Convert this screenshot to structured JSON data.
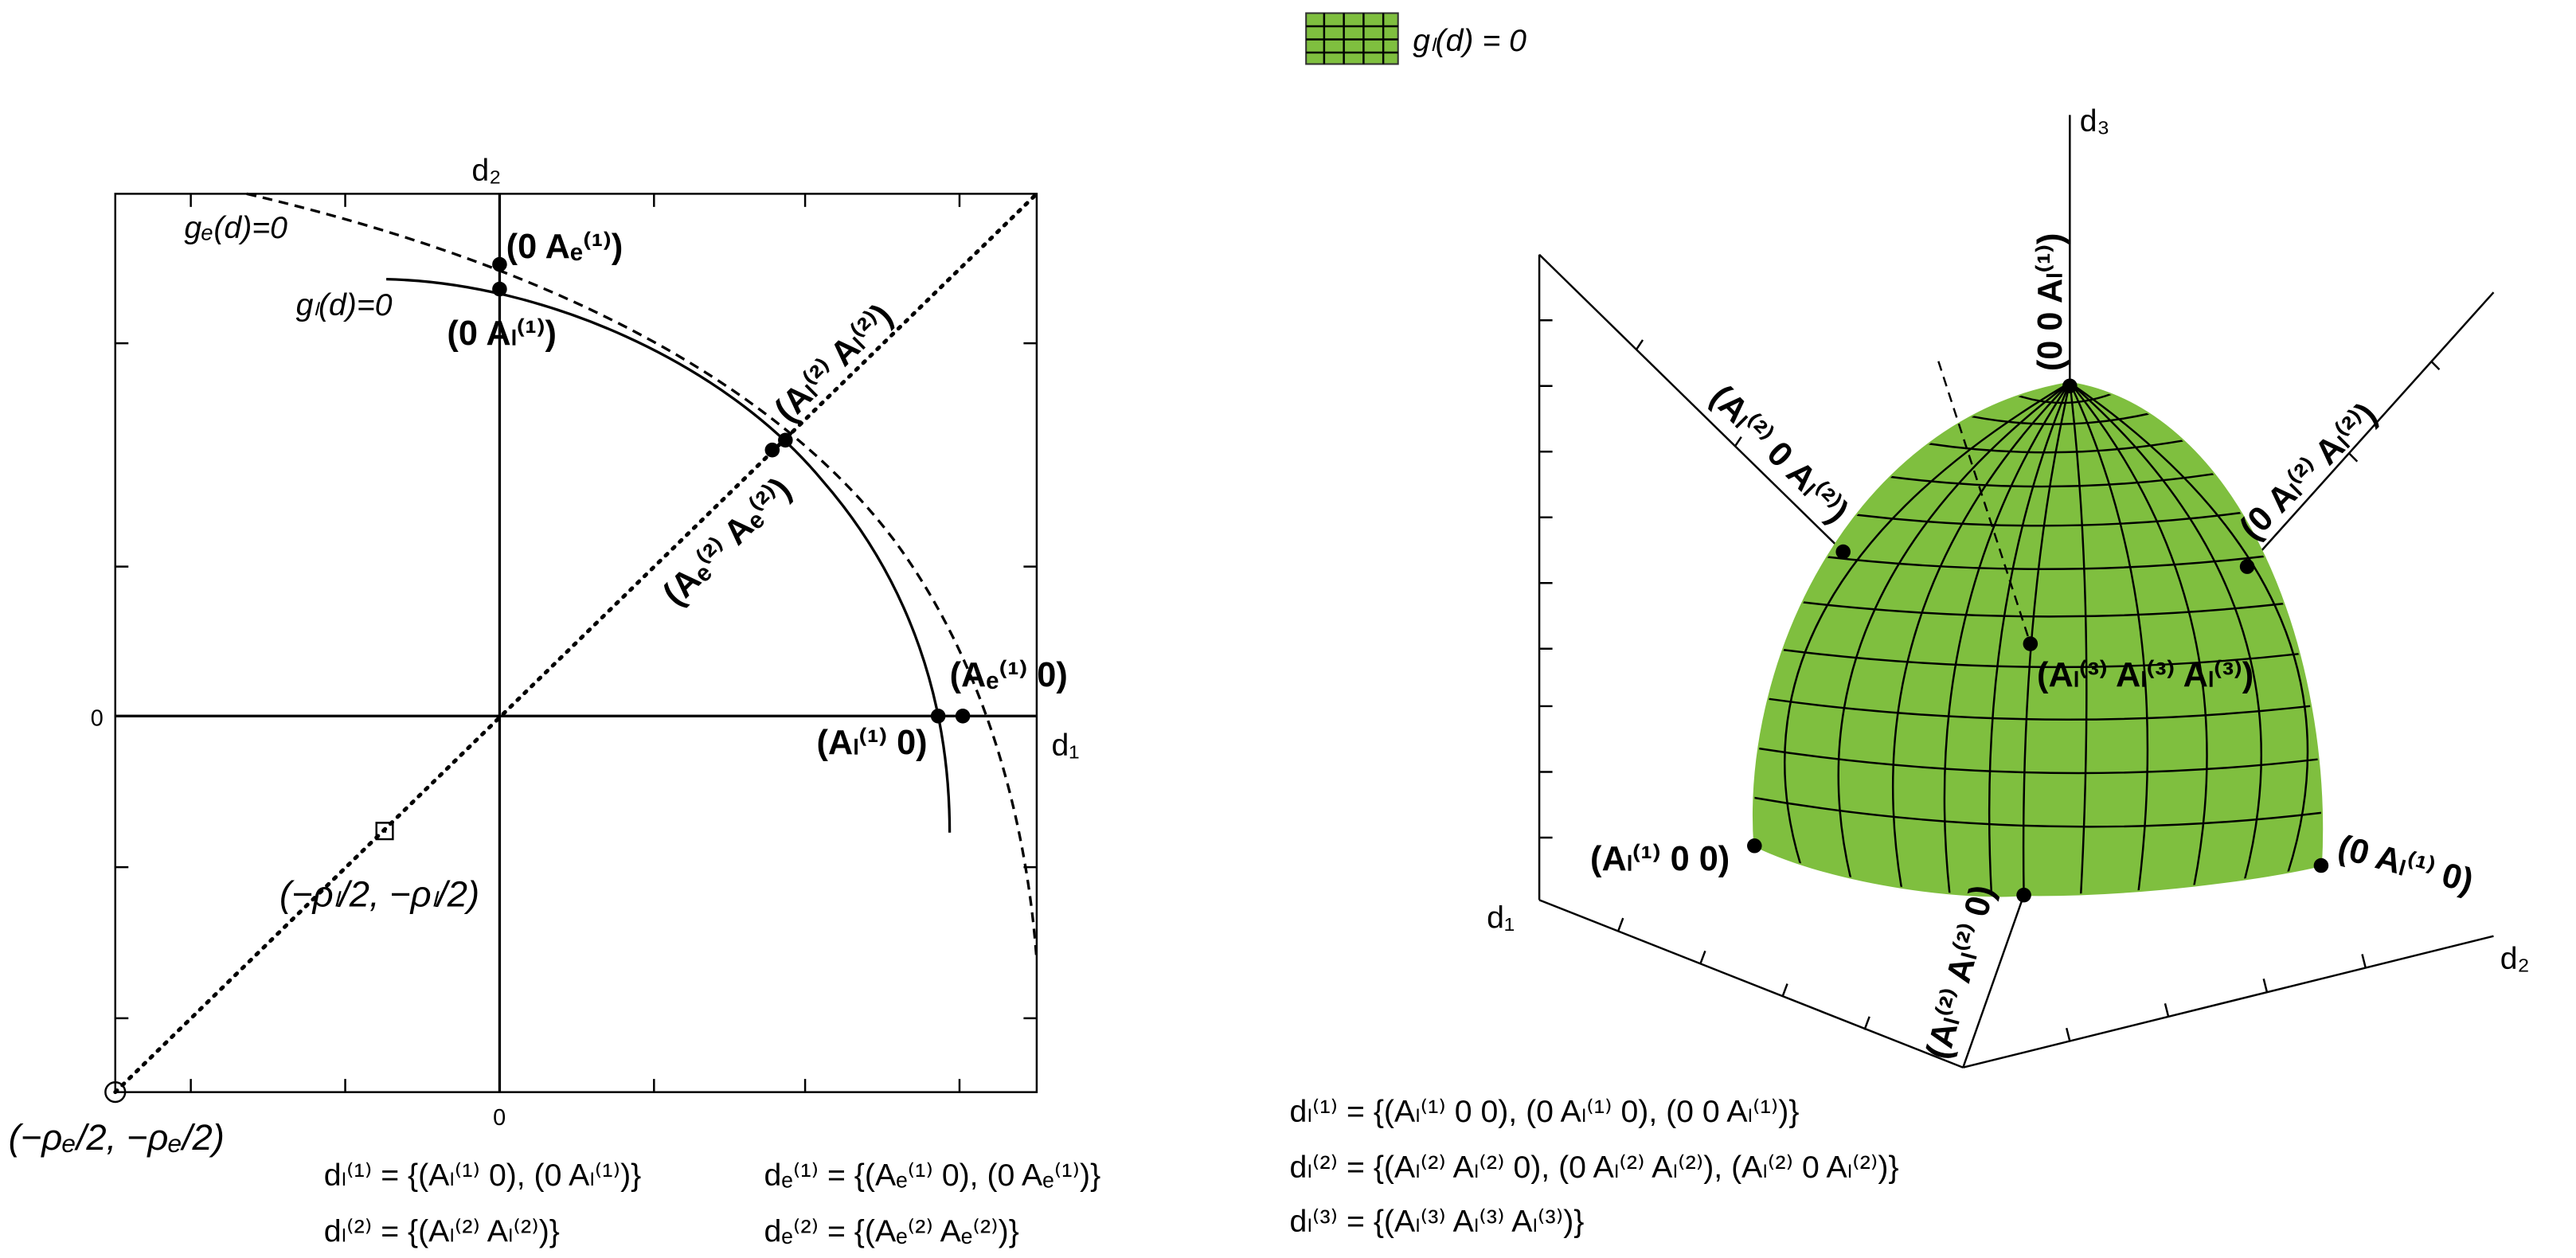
{
  "legend": {
    "label": "gₗ(d) = 0"
  },
  "left_panel": {
    "axis_labels": {
      "d1": "d₁",
      "d2": "d₂"
    },
    "tick_labels": {
      "y_zero": "0",
      "x_zero": "0"
    },
    "curve_labels": {
      "ge": "gₑ(d)=0",
      "gl": "gₗ(d)=0"
    },
    "point_labels": {
      "e_top": "(0 Aₑ⁽¹⁾)",
      "l_top": "(0 Aₗ⁽¹⁾)",
      "l_diag": "(Aₗ⁽²⁾ Aₗ⁽²⁾)",
      "e_diag": "(Aₑ⁽²⁾ Aₑ⁽²⁾)",
      "e_right": "(Aₑ⁽¹⁾ 0)",
      "l_right": "(Aₗ⁽¹⁾ 0)"
    },
    "marker_labels": {
      "square": "(−ρₗ/2, −ρₗ/2)",
      "circle": "(−ρₑ/2, −ρₑ/2)"
    },
    "formulas": [
      "dₗ⁽¹⁾ = {(Aₗ⁽¹⁾ 0), (0 Aₗ⁽¹⁾)}",
      "dₗ⁽²⁾ = {(Aₗ⁽²⁾ Aₗ⁽²⁾)}",
      "dₑ⁽¹⁾ = {(Aₑ⁽¹⁾ 0), (0 Aₑ⁽¹⁾)}",
      "dₑ⁽²⁾ = {(Aₑ⁽²⁾ Aₑ⁽²⁾)}"
    ]
  },
  "right_panel": {
    "axis_labels": {
      "d1": "d₁",
      "d2": "d₂",
      "d3": "d₃"
    },
    "point_labels": {
      "top": "(0 0 Aₗ⁽¹⁾)",
      "left_wall": "(Aₗ⁽²⁾ 0 Aₗ⁽²⁾)",
      "right_wall": "(0 Aₗ⁽²⁾ Aₗ⁽²⁾)",
      "center": "(Aₗ⁽³⁾ Aₗ⁽³⁾ Aₗ⁽³⁾)",
      "d1_point": "(Aₗ⁽¹⁾ 0 0)",
      "d2_point": "(0 Aₗ⁽¹⁾ 0)",
      "floor_point": "(Aₗ⁽²⁾ Aₗ⁽²⁾ 0)"
    },
    "formulas": [
      "dₗ⁽¹⁾ = {(Aₗ⁽¹⁾ 0 0), (0 Aₗ⁽¹⁾ 0), (0 0 Aₗ⁽¹⁾)}",
      "dₗ⁽²⁾ = {(Aₗ⁽²⁾ Aₗ⁽²⁾ 0), (0 Aₗ⁽²⁾ Aₗ⁽²⁾), (Aₗ⁽²⁾ 0 Aₗ⁽²⁾)}",
      "dₗ⁽³⁾ = {(Aₗ⁽³⁾ Aₗ⁽³⁾ Aₗ⁽³⁾)}"
    ]
  }
}
